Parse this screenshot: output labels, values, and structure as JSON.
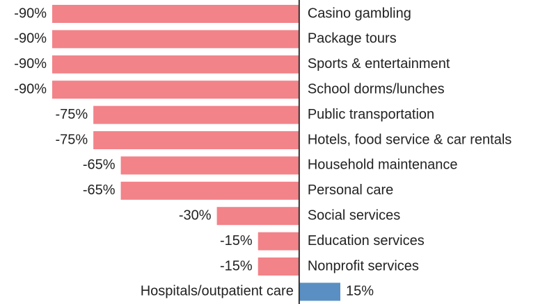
{
  "chart_data": {
    "type": "bar",
    "orientation": "horizontal",
    "categories": [
      "Casino gambling",
      "Package tours",
      "Sports & entertainment",
      "School dorms/lunches",
      "Public transportation",
      "Hotels, food service & car rentals",
      "Household maintenance",
      "Personal care",
      "Social services",
      "Education services",
      "Nonprofit services",
      "Hospitals/outpatient care"
    ],
    "values": [
      -90,
      -90,
      -90,
      -90,
      -75,
      -75,
      -65,
      -65,
      -30,
      -15,
      -15,
      15
    ],
    "value_labels": [
      "-90%",
      "-90%",
      "-90%",
      "-90%",
      "-75%",
      "-75%",
      "-65%",
      "-65%",
      "-30%",
      "-15%",
      "-15%",
      "15%"
    ],
    "colors": [
      "#f28389",
      "#f28389",
      "#f28389",
      "#f28389",
      "#f28389",
      "#f28389",
      "#f28389",
      "#f28389",
      "#f28389",
      "#f28389",
      "#f28389",
      "#5a8fc3"
    ],
    "xlim": [
      -90,
      15
    ]
  }
}
